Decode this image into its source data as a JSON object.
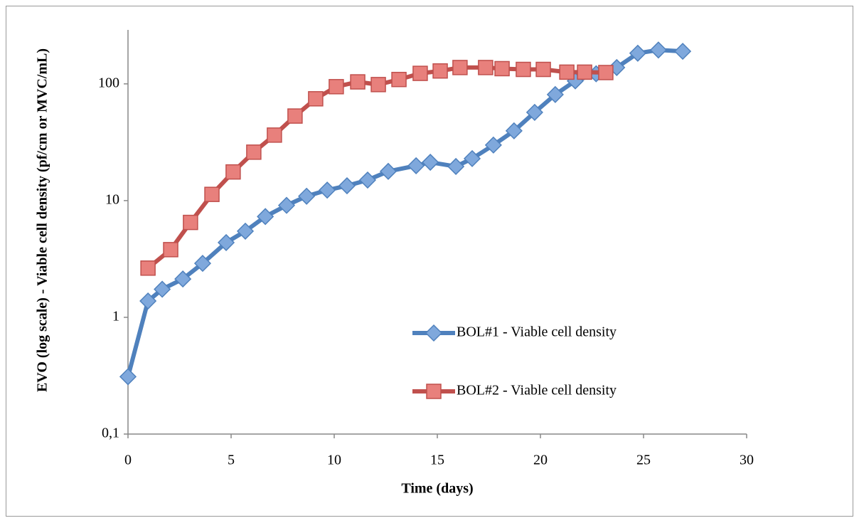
{
  "chart_data": {
    "type": "line",
    "x_label": "Time (days)",
    "y_label": "EVO (log scale) - Viable cell density (pf/cm or MVC/mL)",
    "xlim": [
      0,
      30
    ],
    "xticks": [
      0,
      5,
      10,
      15,
      20,
      25,
      30
    ],
    "ylim": [
      0.1,
      290
    ],
    "yticks": [
      {
        "value": 0.1,
        "label": "0,1"
      },
      1,
      10,
      100
    ],
    "log_y": true,
    "grid": false,
    "legend": "center-right",
    "series": [
      {
        "name": "BOL#1 - Viable cell density",
        "color": "#4f81bd",
        "marker": "diamond",
        "x": [
          0,
          0.97,
          1.66,
          2.66,
          3.62,
          4.76,
          5.69,
          6.66,
          7.69,
          8.66,
          9.66,
          10.62,
          11.62,
          12.62,
          13.97,
          14.66,
          15.9,
          16.69,
          17.72,
          18.72,
          19.72,
          20.72,
          21.69,
          22.7,
          23.7,
          24.72,
          25.72,
          26.9
        ],
        "values": [
          0.31,
          1.38,
          1.74,
          2.13,
          2.9,
          4.37,
          5.47,
          7.3,
          9.1,
          10.9,
          12.3,
          13.4,
          15.0,
          17.8,
          19.9,
          21.3,
          19.6,
          22.9,
          29.9,
          39.6,
          57,
          81,
          106,
          122,
          138,
          183,
          195,
          190
        ]
      },
      {
        "name": "BOL#2 - Viable cell density",
        "color": "#c0504d",
        "marker": "square",
        "x": [
          0.97,
          2.07,
          3.03,
          4.07,
          5.1,
          6.1,
          7.1,
          8.1,
          9.1,
          10.1,
          11.14,
          12.14,
          13.14,
          14.17,
          15.14,
          16.1,
          17.34,
          18.14,
          19.17,
          20.14,
          21.28,
          22.14,
          23.17
        ],
        "values": [
          2.64,
          3.8,
          6.5,
          11.3,
          17.6,
          26,
          36.4,
          53,
          74.5,
          94.6,
          104,
          98.6,
          109,
          123,
          129,
          138,
          138,
          135,
          133,
          133,
          126,
          126,
          125
        ]
      }
    ]
  }
}
